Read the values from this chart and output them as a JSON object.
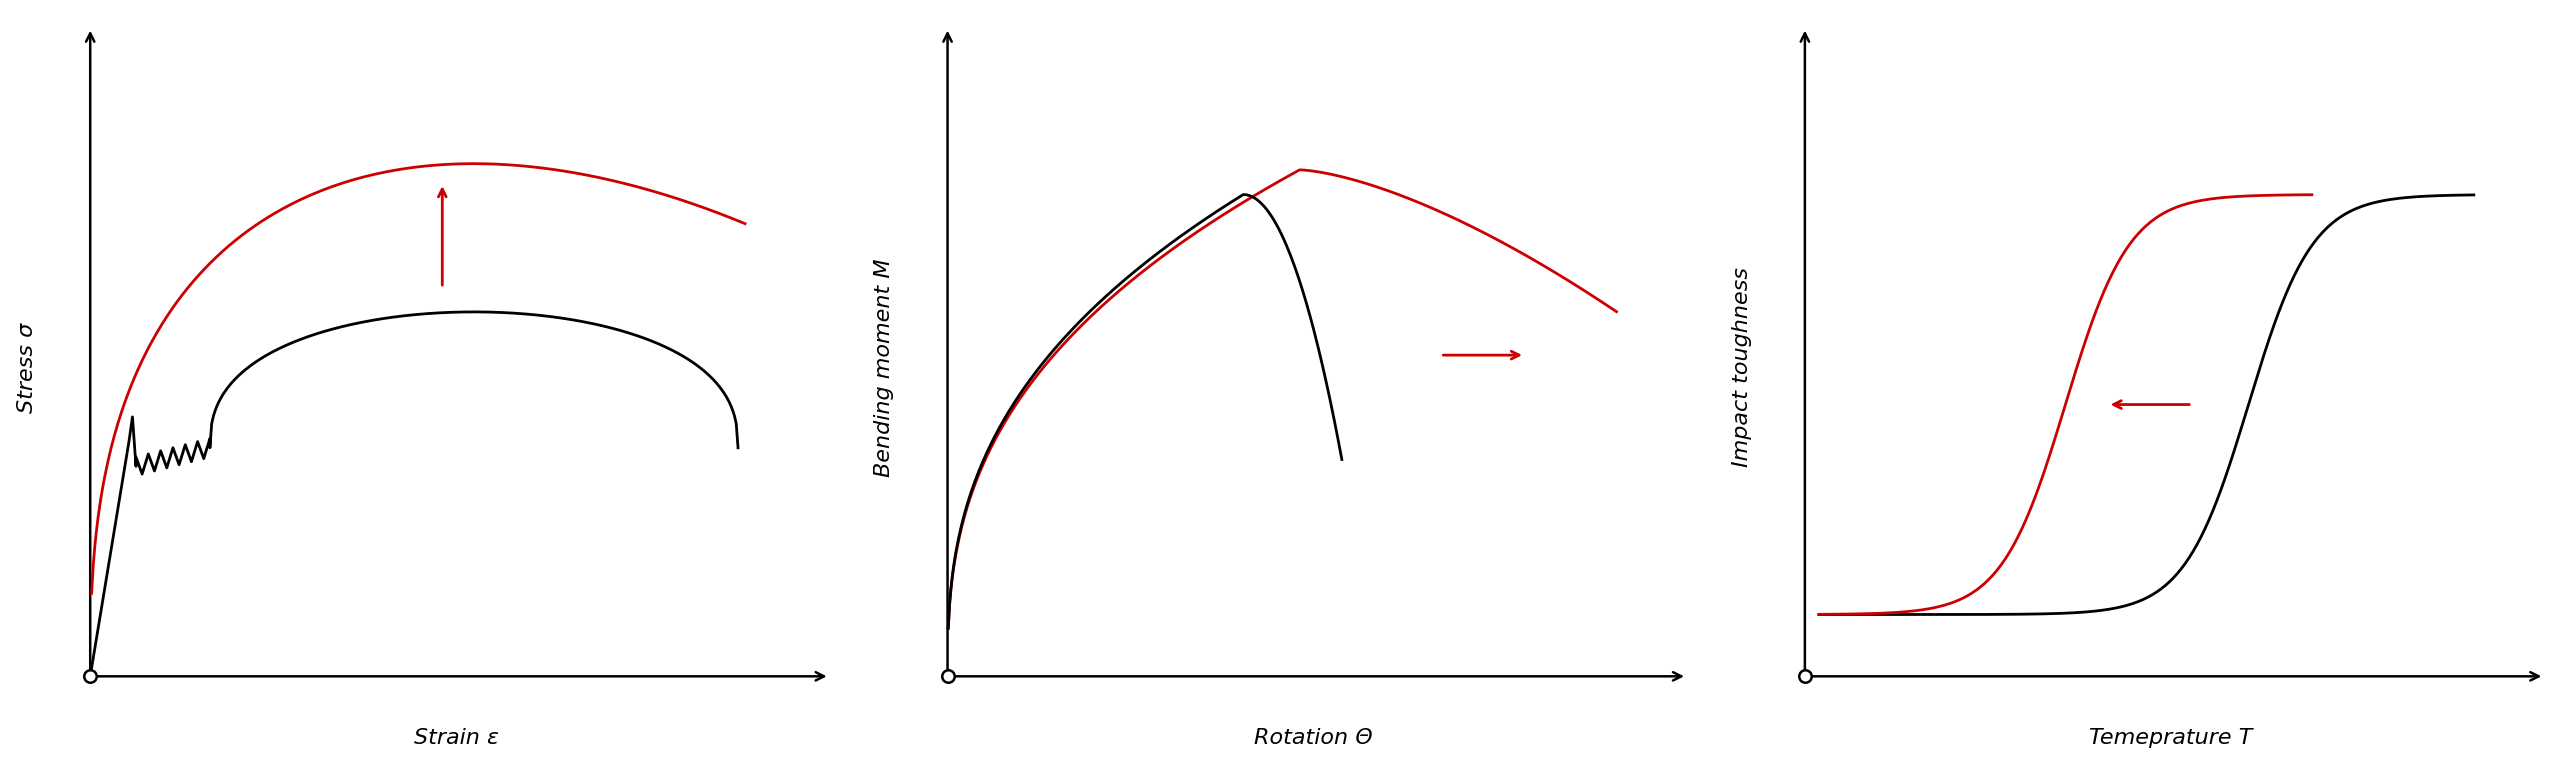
{
  "fig_width": 25.72,
  "fig_height": 7.72,
  "bg_color": "#ffffff",
  "plot1": {
    "xlabel": "Strain ε",
    "ylabel": "Stress σ",
    "black_color": "#000000",
    "red_color": "#cc0000"
  },
  "plot2": {
    "xlabel": "Rotation Θ",
    "ylabel": "Bending moment M",
    "black_color": "#000000",
    "red_color": "#cc0000"
  },
  "plot3": {
    "xlabel": "Temeprature T",
    "ylabel": "Impact toughness",
    "black_color": "#000000",
    "red_color": "#cc0000"
  },
  "axis_label_fontsize": 16
}
